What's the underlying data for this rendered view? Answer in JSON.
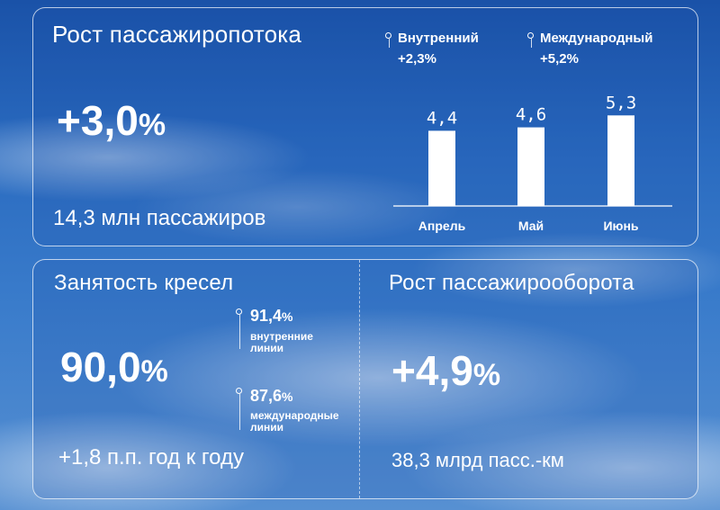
{
  "passenger_growth": {
    "title": "Рост пассажиропотока",
    "value": "+3,0",
    "value_unit": "%",
    "passengers": "14,3 млн пассажиров",
    "legend": [
      {
        "label": "Внутренний",
        "value": "+2,3%"
      },
      {
        "label": "Международный",
        "value": "+5,2%"
      }
    ]
  },
  "seat_occupancy": {
    "title": "Занятость кресел",
    "value": "90,0",
    "value_unit": "%",
    "change": "+1,8 п.п. год к году",
    "domestic": {
      "value": "91,4",
      "unit": "%",
      "label_line1": "внутренние",
      "label_line2": "линии"
    },
    "international": {
      "value": "87,6",
      "unit": "%",
      "label_line1": "международные",
      "label_line2": "линии"
    }
  },
  "passenger_turnover": {
    "title": "Рост пассажирооборота",
    "value": "+4,9",
    "value_unit": "%",
    "amount": "38,3 млрд пасс.-км"
  },
  "chart_data": {
    "type": "bar",
    "categories": [
      "Апрель",
      "Май",
      "Июнь"
    ],
    "values": [
      4.4,
      4.6,
      5.3
    ],
    "value_labels": [
      "4,4",
      "4,6",
      "5,3"
    ],
    "bar_color": "#ffffff"
  }
}
